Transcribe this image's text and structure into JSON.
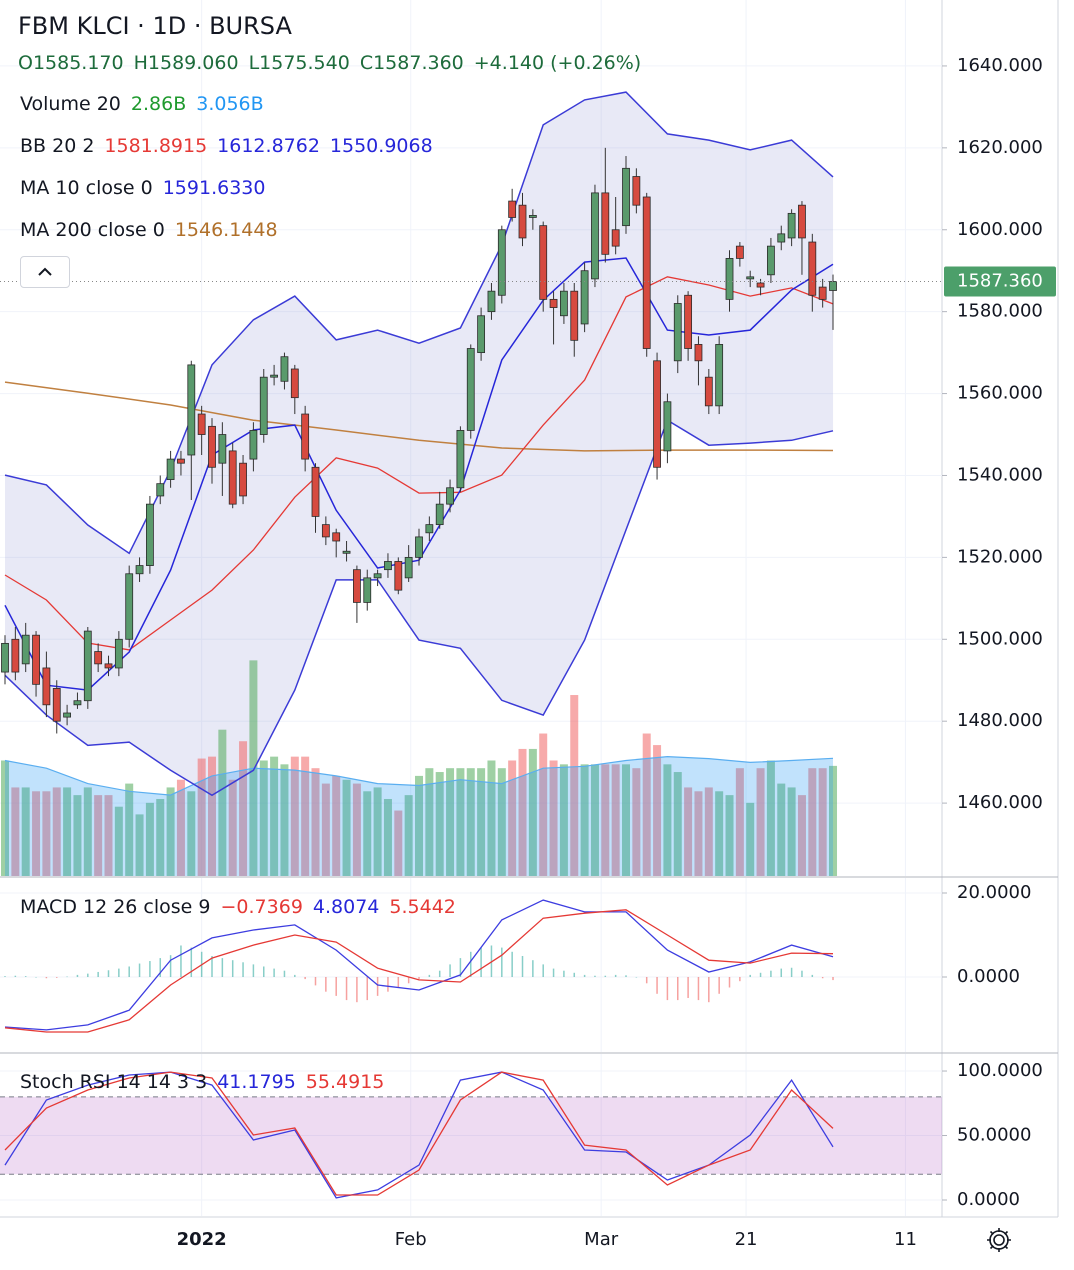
{
  "header": {
    "title": "FBM KLCI · 1D · BURSA",
    "ohlc": [
      "O1585.170",
      "H1589.060",
      "L1575.540",
      "C1587.360",
      "+4.140 (+0.26%)"
    ]
  },
  "chart_data": [
    {
      "type": "candlestick",
      "legend": [
        {
          "label": "BB 20 2",
          "readouts": [
            {
              "text": "1581.8915",
              "color": "#e53935"
            },
            {
              "text": "1612.8762",
              "color": "#2626d9"
            },
            {
              "text": "1550.9068",
              "color": "#2626d9"
            }
          ]
        },
        {
          "label": "MA 10 close 0",
          "readouts": [
            {
              "text": "1591.6330",
              "color": "#2626d9"
            }
          ]
        },
        {
          "label": "MA 200 close 0",
          "readouts": [
            {
              "text": "1546.1448",
              "color": "#b0702a"
            }
          ]
        }
      ],
      "up_color": "#5a9a6c",
      "down_color": "#d64a3f",
      "open": [
        1492,
        1500,
        1494,
        1501,
        1493,
        1488,
        1481,
        1484,
        1485,
        1497,
        1494,
        1493,
        1500,
        1516,
        1518,
        1535,
        1539,
        1544,
        1545,
        1555,
        1552,
        1543,
        1546,
        1543,
        1544,
        1550,
        1564,
        1563,
        1566,
        1555,
        1542,
        1528,
        1526,
        1521,
        1517,
        1509,
        1515,
        1517,
        1519,
        1515,
        1520,
        1526,
        1528,
        1533,
        1537,
        1551,
        1570,
        1580,
        1584,
        1607,
        1606,
        1603,
        1601,
        1583,
        1579,
        1585,
        1577,
        1588,
        1609,
        1600,
        1601,
        1613,
        1608,
        1568,
        1546,
        1568,
        1584,
        1572,
        1564,
        1557,
        1583,
        1596,
        1588,
        1587,
        1589,
        1597,
        1598,
        1606,
        1597,
        1586,
        1585.17
      ],
      "high": [
        1501,
        1503,
        1504,
        1502,
        1497,
        1490,
        1484,
        1487,
        1503,
        1499,
        1496,
        1502,
        1518,
        1520,
        1535,
        1540,
        1546,
        1546,
        1568,
        1557,
        1554,
        1553,
        1548,
        1545,
        1553,
        1566,
        1567,
        1570,
        1567,
        1557,
        1543,
        1530,
        1527,
        1524,
        1518,
        1517,
        1517,
        1521,
        1520,
        1523,
        1527,
        1530,
        1536,
        1539,
        1552,
        1572,
        1581,
        1587,
        1601,
        1610,
        1609,
        1605,
        1602,
        1585,
        1587,
        1587,
        1592,
        1611,
        1620,
        1608,
        1618,
        1615,
        1609,
        1570,
        1560,
        1584,
        1585,
        1574,
        1566,
        1574,
        1595,
        1597,
        1590,
        1588,
        1598,
        1601,
        1605,
        1607,
        1599,
        1588,
        1589.06
      ],
      "low": [
        1489,
        1490,
        1492,
        1486,
        1481,
        1477,
        1479,
        1483,
        1483,
        1492,
        1491,
        1491,
        1498,
        1514,
        1516,
        1533,
        1537,
        1540,
        1534,
        1545,
        1538,
        1535,
        1532,
        1533,
        1541,
        1548,
        1562,
        1561,
        1555,
        1541,
        1526,
        1523,
        1520,
        1519,
        1504,
        1507,
        1513,
        1515,
        1511,
        1514,
        1518,
        1524,
        1527,
        1531,
        1536,
        1549,
        1568,
        1578,
        1582,
        1602,
        1596,
        1600,
        1580,
        1572,
        1577,
        1569,
        1575,
        1586,
        1592,
        1594,
        1599,
        1604,
        1569,
        1539,
        1543,
        1565,
        1568,
        1562,
        1555,
        1555,
        1580,
        1591,
        1586,
        1584,
        1587,
        1595,
        1596,
        1589,
        1580,
        1581,
        1575.54
      ],
      "close": [
        1499,
        1492,
        1501,
        1489,
        1484,
        1480,
        1482,
        1485,
        1502,
        1494,
        1493,
        1500,
        1516,
        1518,
        1533,
        1538,
        1544,
        1543,
        1567,
        1550,
        1542,
        1550,
        1533,
        1535,
        1551,
        1564,
        1564.5,
        1569,
        1559,
        1544,
        1530,
        1525,
        1524,
        1521.5,
        1509,
        1515,
        1516,
        1519,
        1512,
        1520,
        1525,
        1528,
        1533,
        1537,
        1551,
        1571,
        1579,
        1585,
        1600,
        1603,
        1598,
        1603.5,
        1583,
        1581,
        1585,
        1573,
        1590,
        1609,
        1594,
        1596,
        1615,
        1606,
        1571,
        1542,
        1558,
        1582,
        1571,
        1568,
        1557,
        1572,
        1593,
        1593,
        1588.5,
        1586,
        1596,
        1599,
        1604,
        1598,
        1584,
        1583,
        1587.36
      ],
      "bollinger": {
        "fill": "rgba(120,123,200,0.17)",
        "upper": {
          "color": "#3b3bd6",
          "x": [
            0,
            4,
            8,
            12,
            16,
            20,
            24,
            28,
            32,
            36,
            40,
            44,
            48,
            52,
            56,
            60,
            64,
            68,
            72,
            76,
            80
          ],
          "values": [
            1540.1,
            1537.7,
            1527.9,
            1521.0,
            1541.3,
            1567.0,
            1578.0,
            1583.8,
            1573.1,
            1575.5,
            1572.3,
            1576.0,
            1596.3,
            1625.6,
            1631.7,
            1633.6,
            1623.4,
            1621.9,
            1619.5,
            1621.9,
            1612.9
          ]
        },
        "basis": {
          "color": "#e53935",
          "x": [
            0,
            4,
            8,
            12,
            16,
            20,
            24,
            28,
            32,
            36,
            40,
            44,
            48,
            52,
            56,
            60,
            64,
            68,
            72,
            76,
            80
          ],
          "values": [
            1515.7,
            1509.6,
            1499.1,
            1497.4,
            1504.7,
            1512.0,
            1521.8,
            1534.7,
            1544.3,
            1541.8,
            1535.7,
            1535.9,
            1540.1,
            1552.3,
            1563.3,
            1583.6,
            1588.5,
            1586.5,
            1583.8,
            1585.8,
            1581.9
          ]
        },
        "lower": {
          "color": "#3b3bd6",
          "x": [
            0,
            4,
            8,
            12,
            16,
            20,
            24,
            28,
            32,
            36,
            40,
            44,
            48,
            52,
            56,
            60,
            64,
            68,
            72,
            76,
            80
          ],
          "values": [
            1491.2,
            1481.5,
            1474.1,
            1474.9,
            1468.0,
            1461.9,
            1468.0,
            1487.6,
            1514.5,
            1514.5,
            1499.8,
            1497.8,
            1485.1,
            1481.5,
            1499.8,
            1526.7,
            1553.5,
            1547.4,
            1547.9,
            1548.6,
            1550.9
          ]
        }
      },
      "ma10": {
        "color": "#2626d9",
        "x": [
          0,
          4,
          8,
          12,
          16,
          20,
          24,
          28,
          32,
          36,
          40,
          44,
          48,
          52,
          56,
          60,
          64,
          68,
          72,
          76,
          80
        ],
        "values": [
          1508.3,
          1488.8,
          1487.6,
          1496.9,
          1516.9,
          1545.0,
          1551.1,
          1552.3,
          1531.5,
          1517.4,
          1519.3,
          1536.4,
          1568.2,
          1582.8,
          1592.1,
          1593.1,
          1575.5,
          1574.3,
          1575.5,
          1585.3,
          1591.6
        ]
      },
      "ma200": {
        "color": "#c08040",
        "x": [
          0,
          8,
          16,
          24,
          32,
          40,
          48,
          56,
          64,
          72,
          80
        ],
        "values": [
          1562.8,
          1560.1,
          1557.2,
          1553.5,
          1551.1,
          1548.6,
          1546.7,
          1546.0,
          1546.2,
          1546.2,
          1546.1
        ]
      },
      "last_price": {
        "value": 1587.36,
        "label": "1587.360",
        "color": "#4c9f6a"
      },
      "ylim": [
        1442.2,
        1656.1
      ],
      "yticks": [
        {
          "value": 1460,
          "label": "1460.000"
        },
        {
          "value": 1480,
          "label": "1480.000"
        },
        {
          "value": 1500,
          "label": "1500.000"
        },
        {
          "value": 1520,
          "label": "1520.000"
        },
        {
          "value": 1540,
          "label": "1540.000"
        },
        {
          "value": 1560,
          "label": "1560.000"
        },
        {
          "value": 1580,
          "label": "1580.000"
        },
        {
          "value": 1600,
          "label": "1600.000"
        },
        {
          "value": 1620,
          "label": "1620.000"
        },
        {
          "value": 1640,
          "label": "1640.000"
        }
      ],
      "xlim": [
        -0.483,
        90.53
      ],
      "xticks": [
        {
          "value": 19,
          "label": "2022"
        },
        {
          "value": 39.2,
          "label": "Feb"
        },
        {
          "value": 57.6,
          "label": "Mar"
        },
        {
          "value": 71.6,
          "label": "21"
        },
        {
          "value": 87,
          "label": "11"
        }
      ],
      "grid": true
    },
    {
      "type": "volume",
      "legend": [
        {
          "label": "Volume 20",
          "readouts": [
            {
              "text": "2.86B",
              "color": "#1f9a2e"
            },
            {
              "text": "3.056B",
              "color": "#2196f3"
            }
          ]
        }
      ],
      "up_color": "rgba(80,170,90,0.55)",
      "down_color": "rgba(240,100,100,0.55)",
      "values": [
        3.0,
        2.3,
        2.3,
        2.2,
        2.2,
        2.3,
        2.3,
        2.1,
        2.3,
        2.1,
        2.1,
        1.8,
        2.4,
        1.6,
        1.9,
        2.0,
        2.3,
        2.5,
        2.2,
        3.05,
        3.1,
        3.8,
        2.5,
        3.5,
        5.6,
        3.0,
        3.1,
        2.9,
        3.1,
        3.1,
        2.8,
        2.4,
        2.6,
        2.5,
        2.4,
        2.2,
        2.3,
        2.0,
        1.7,
        2.1,
        2.6,
        2.8,
        2.7,
        2.8,
        2.8,
        2.8,
        2.8,
        3.0,
        2.8,
        3.0,
        3.3,
        3.3,
        3.7,
        3.0,
        2.9,
        4.7,
        2.9,
        2.9,
        2.9,
        2.9,
        2.9,
        2.8,
        3.7,
        3.4,
        2.9,
        2.7,
        2.3,
        2.2,
        2.3,
        2.2,
        2.1,
        2.8,
        1.9,
        2.8,
        3.0,
        2.4,
        2.3,
        2.1,
        2.8,
        2.8,
        2.86
      ],
      "ma": {
        "color": "#5aaef0",
        "fill": "rgba(33,150,243,0.28)",
        "x": [
          0,
          4,
          8,
          12,
          16,
          20,
          24,
          28,
          32,
          36,
          40,
          44,
          48,
          52,
          56,
          60,
          64,
          68,
          72,
          76,
          80
        ],
        "values": [
          3.0,
          2.8,
          2.4,
          2.2,
          2.1,
          2.6,
          2.8,
          2.75,
          2.6,
          2.4,
          2.35,
          2.5,
          2.4,
          2.8,
          2.85,
          3.0,
          3.1,
          3.05,
          2.95,
          3.0,
          3.056
        ]
      },
      "ylim": [
        0,
        22.75
      ]
    },
    {
      "type": "macd",
      "legend": [
        {
          "label": "MACD 12 26 close 9",
          "readouts": [
            {
              "text": "−0.7369",
              "color": "#e53935"
            },
            {
              "text": "4.8074",
              "color": "#2626d9"
            },
            {
              "text": "5.5442",
              "color": "#e53935"
            }
          ]
        }
      ],
      "histogram": [
        0.2,
        0.3,
        0.2,
        0.0,
        -0.3,
        -0.2,
        0.1,
        0.5,
        0.8,
        1.2,
        1.6,
        2.0,
        2.5,
        3.2,
        3.8,
        4.5,
        5.2,
        7.5,
        7.0,
        6.0,
        5.0,
        4.5,
        4.0,
        3.5,
        3.0,
        2.5,
        2.0,
        1.5,
        0.5,
        -0.5,
        -2.0,
        -3.5,
        -4.5,
        -5.5,
        -6.0,
        -5.5,
        -4.5,
        -3.5,
        -2.5,
        -1.5,
        -0.5,
        0.5,
        1.5,
        3.0,
        4.5,
        6.0,
        7.0,
        7.5,
        7.0,
        6.0,
        5.0,
        4.0,
        3.0,
        2.0,
        1.5,
        1.0,
        0.5,
        0.3,
        0.3,
        0.5,
        0.4,
        0.0,
        -1.5,
        -4.0,
        -5.5,
        -5.5,
        -5.0,
        -5.5,
        -6.0,
        -4.0,
        -2.5,
        -1.0,
        0.5,
        1.0,
        1.5,
        2.0,
        2.2,
        1.5,
        0.5,
        -0.3,
        -0.7369
      ],
      "up_color": "rgba(38,166,154,0.55)",
      "down_color": "rgba(239,83,80,0.55)",
      "macd": {
        "color": "#3d3de0",
        "x": [
          0,
          4,
          8,
          12,
          16,
          20,
          24,
          28,
          32,
          36,
          40,
          44,
          48,
          52,
          56,
          60,
          64,
          68,
          72,
          76,
          80
        ],
        "values": [
          -11.9,
          -12.6,
          -11.4,
          -7.9,
          4.0,
          9.3,
          11.2,
          12.4,
          6.4,
          -1.9,
          -3.1,
          0.5,
          13.6,
          18.3,
          15.5,
          15.5,
          6.4,
          1.2,
          3.6,
          7.6,
          4.8074
        ]
      },
      "signal": {
        "color": "#e53935",
        "x": [
          0,
          4,
          8,
          12,
          16,
          20,
          24,
          28,
          32,
          36,
          40,
          44,
          48,
          52,
          56,
          60,
          64,
          68,
          72,
          76,
          80
        ],
        "values": [
          -12.1,
          -13.1,
          -13.1,
          -10.2,
          -1.9,
          4.5,
          7.6,
          10.0,
          8.3,
          2.1,
          -0.7,
          -1.2,
          5.2,
          14.0,
          15.2,
          16.0,
          10.0,
          4.0,
          3.3,
          5.7,
          5.5442
        ]
      },
      "ylim": [
        -17.86,
        23.57
      ],
      "yticks": [
        {
          "value": 0,
          "label": "0.0000"
        },
        {
          "value": 20,
          "label": "20.0000"
        }
      ]
    },
    {
      "type": "stoch",
      "legend": [
        {
          "label": "Stoch RSI 14 14 3 3",
          "readouts": [
            {
              "text": "41.1795",
              "color": "#2626d9"
            },
            {
              "text": "55.4915",
              "color": "#e53935"
            }
          ]
        }
      ],
      "k": {
        "color": "#3d3de0",
        "x": [
          0,
          4,
          8,
          12,
          16,
          20,
          24,
          28,
          32,
          36,
          40,
          44,
          48,
          52,
          56,
          60,
          64,
          68,
          72,
          76,
          80
        ],
        "values": [
          27.1,
          77.5,
          89.1,
          96.9,
          99.2,
          89.1,
          46.5,
          54.3,
          1.6,
          7.8,
          27.1,
          93.0,
          99.2,
          85.3,
          38.8,
          37.2,
          15.5,
          27.1,
          50.4,
          93.0,
          41.1795
        ]
      },
      "d": {
        "color": "#e53935",
        "x": [
          0,
          4,
          8,
          12,
          16,
          20,
          24,
          28,
          32,
          36,
          40,
          44,
          48,
          52,
          56,
          60,
          64,
          68,
          72,
          76,
          80
        ],
        "values": [
          38.8,
          71.3,
          85.3,
          94.6,
          99.2,
          94.6,
          50.4,
          55.8,
          3.9,
          3.9,
          23.3,
          77.5,
          99.2,
          93.0,
          42.6,
          38.8,
          11.6,
          27.1,
          38.8,
          85.3,
          55.4915
        ]
      },
      "band": [
        20,
        80
      ],
      "band_color": "rgba(156,39,176,0.17)",
      "ylim": [
        -12.4,
        113.2
      ],
      "yticks": [
        {
          "value": 0,
          "label": "0.0000"
        },
        {
          "value": 50,
          "label": "50.0000"
        },
        {
          "value": 100,
          "label": "100.0000"
        }
      ]
    }
  ]
}
